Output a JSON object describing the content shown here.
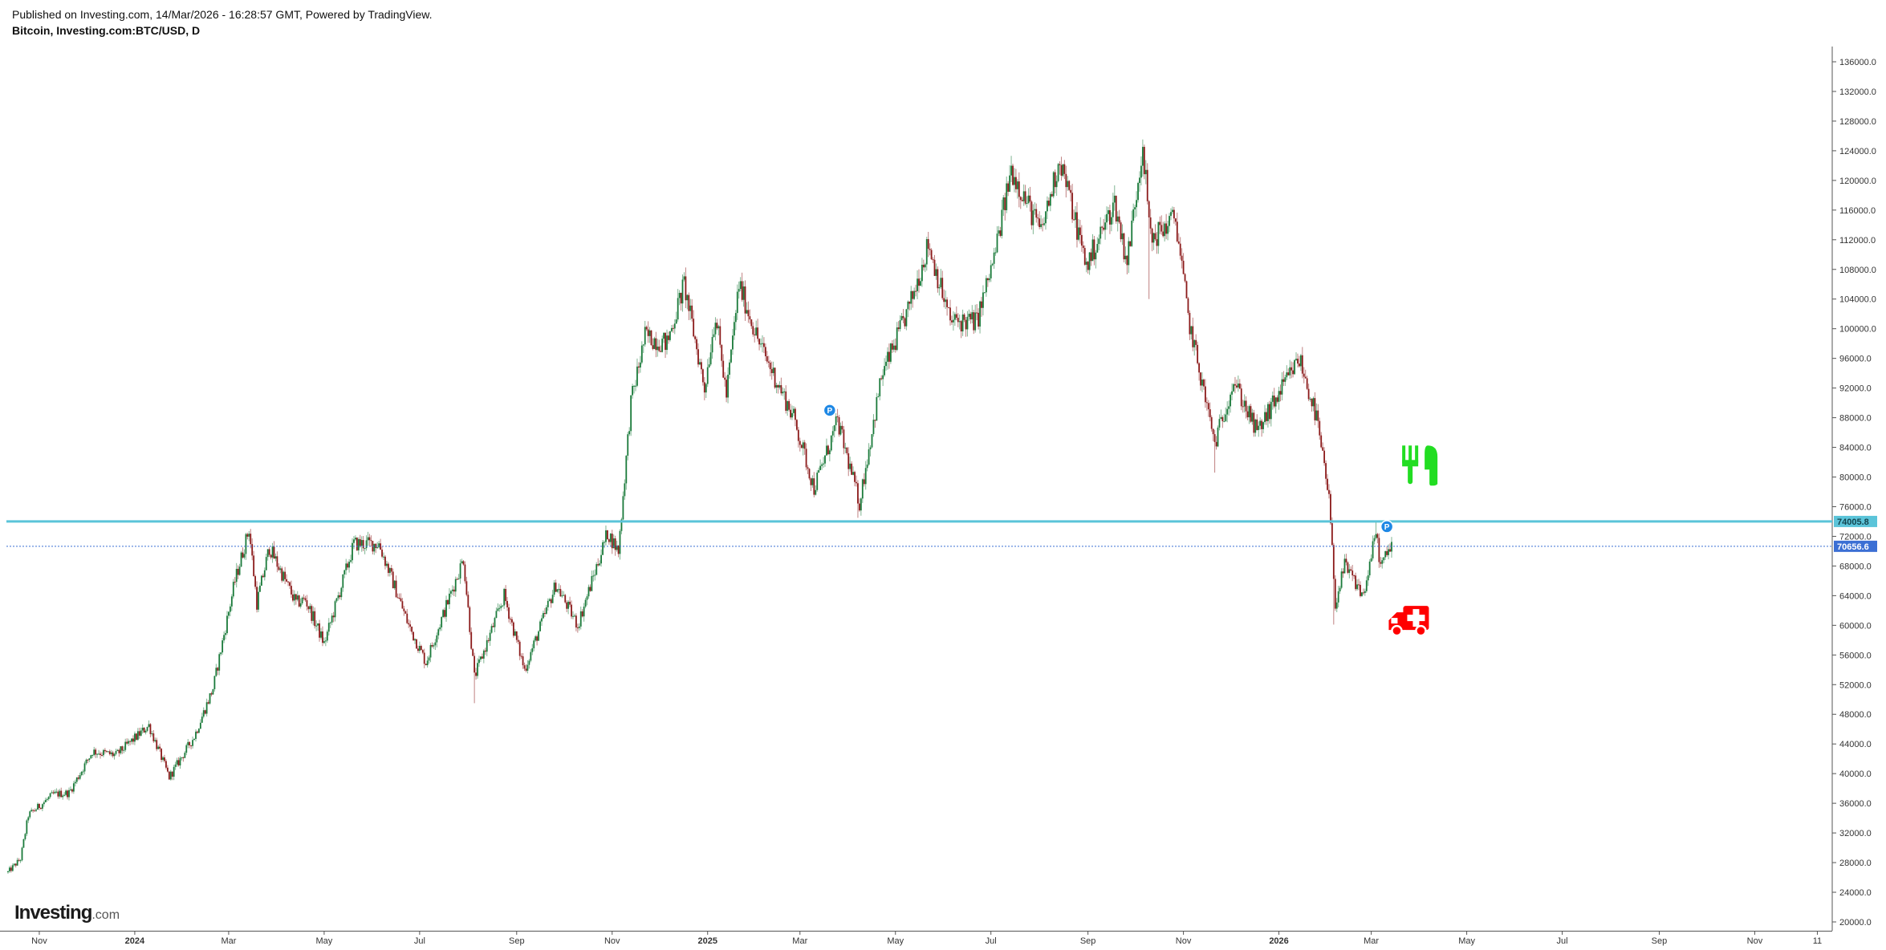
{
  "header": {
    "published": "Published on Investing.com, 14/Mar/2026 - 16:28:57 GMT, Powered by TradingView.",
    "symbol": "Bitcoin, Investing.com:BTC/USD, D"
  },
  "logo": {
    "main": "Investing",
    "suffix": ".com"
  },
  "colors": {
    "up": "#1a7a3a",
    "down": "#8b1a1a",
    "resistance": "#5bc4d9",
    "current": "#3b6fd4",
    "marker": "#1e88e5",
    "fork_icon": "#22dd22",
    "ambulance_icon": "#ff0000"
  },
  "chart_data": {
    "type": "candlestick",
    "title": "",
    "ylim": [
      20000,
      138000
    ],
    "y_ticks": [
      20000,
      24000,
      28000,
      32000,
      36000,
      40000,
      44000,
      48000,
      52000,
      56000,
      60000,
      64000,
      68000,
      72000,
      76000,
      80000,
      84000,
      88000,
      92000,
      96000,
      100000,
      104000,
      108000,
      112000,
      116000,
      120000,
      124000,
      128000,
      132000,
      136000
    ],
    "y_tick_labels": [
      "20000.0",
      "24000.0",
      "28000.0",
      "32000.0",
      "36000.0",
      "40000.0",
      "44000.0",
      "48000.0",
      "52000.0",
      "56000.0",
      "60000.0",
      "64000.0",
      "68000.0",
      "72000.0",
      "76000.0",
      "80000.0",
      "84000.0",
      "88000.0",
      "92000.0",
      "96000.0",
      "100000.0",
      "104000.0",
      "108000.0",
      "112000.0",
      "116000.0",
      "120000.0",
      "124000.0",
      "128000.0",
      "132000.0",
      "136000.0"
    ],
    "x_range": [
      "2023-10-11",
      "2026-12-20"
    ],
    "x_ticks": [
      {
        "date": "2023-11-01",
        "label": "Nov",
        "bold": false
      },
      {
        "date": "2024-01-01",
        "label": "2024",
        "bold": true
      },
      {
        "date": "2024-03-01",
        "label": "Mar",
        "bold": false
      },
      {
        "date": "2024-05-01",
        "label": "May",
        "bold": false
      },
      {
        "date": "2024-07-01",
        "label": "Jul",
        "bold": false
      },
      {
        "date": "2024-09-01",
        "label": "Sep",
        "bold": false
      },
      {
        "date": "2024-11-01",
        "label": "Nov",
        "bold": false
      },
      {
        "date": "2025-01-01",
        "label": "2025",
        "bold": true
      },
      {
        "date": "2025-03-01",
        "label": "Mar",
        "bold": false
      },
      {
        "date": "2025-05-01",
        "label": "May",
        "bold": false
      },
      {
        "date": "2025-07-01",
        "label": "Jul",
        "bold": false
      },
      {
        "date": "2025-09-01",
        "label": "Sep",
        "bold": false
      },
      {
        "date": "2025-11-01",
        "label": "Nov",
        "bold": false
      },
      {
        "date": "2026-01-01",
        "label": "2026",
        "bold": true
      },
      {
        "date": "2026-03-01",
        "label": "Mar",
        "bold": false
      },
      {
        "date": "2026-05-01",
        "label": "May",
        "bold": false
      },
      {
        "date": "2026-07-01",
        "label": "Jul",
        "bold": false
      },
      {
        "date": "2026-09-01",
        "label": "Sep",
        "bold": false
      },
      {
        "date": "2026-11-01",
        "label": "Nov",
        "bold": false
      },
      {
        "date": "2026-12-11",
        "label": "11",
        "bold": false
      }
    ],
    "close_path": [
      [
        "2023-10-12",
        26700
      ],
      [
        "2023-10-20",
        28500
      ],
      [
        "2023-10-25",
        34400
      ],
      [
        "2023-11-10",
        37200
      ],
      [
        "2023-11-20",
        37400
      ],
      [
        "2023-12-05",
        43000
      ],
      [
        "2023-12-20",
        42500
      ],
      [
        "2024-01-10",
        46500
      ],
      [
        "2024-01-23",
        39500
      ],
      [
        "2024-02-08",
        45000
      ],
      [
        "2024-02-20",
        51500
      ],
      [
        "2024-03-05",
        66000
      ],
      [
        "2024-03-14",
        73000
      ],
      [
        "2024-03-19",
        63000
      ],
      [
        "2024-03-27",
        70500
      ],
      [
        "2024-04-13",
        63000
      ],
      [
        "2024-04-19",
        63500
      ],
      [
        "2024-05-01",
        57500
      ],
      [
        "2024-05-20",
        71000
      ],
      [
        "2024-06-05",
        71000
      ],
      [
        "2024-06-24",
        60000
      ],
      [
        "2024-07-05",
        55000
      ],
      [
        "2024-07-29",
        69000
      ],
      [
        "2024-08-05",
        53000
      ],
      [
        "2024-08-24",
        64000
      ],
      [
        "2024-09-06",
        54000
      ],
      [
        "2024-09-26",
        65500
      ],
      [
        "2024-10-10",
        60000
      ],
      [
        "2024-10-29",
        72500
      ],
      [
        "2024-11-05",
        70000
      ],
      [
        "2024-11-13",
        90000
      ],
      [
        "2024-11-22",
        99000
      ],
      [
        "2024-12-06",
        98000
      ],
      [
        "2024-12-17",
        106000
      ],
      [
        "2024-12-30",
        92000
      ],
      [
        "2025-01-06",
        102000
      ],
      [
        "2025-01-13",
        91000
      ],
      [
        "2025-01-21",
        106000
      ],
      [
        "2025-02-03",
        98000
      ],
      [
        "2025-02-25",
        88000
      ],
      [
        "2025-03-10",
        78500
      ],
      [
        "2025-03-25",
        87500
      ],
      [
        "2025-04-08",
        76500
      ],
      [
        "2025-04-22",
        93500
      ],
      [
        "2025-05-10",
        103000
      ],
      [
        "2025-05-22",
        111500
      ],
      [
        "2025-06-05",
        101000
      ],
      [
        "2025-06-22",
        101000
      ],
      [
        "2025-07-03",
        109500
      ],
      [
        "2025-07-14",
        121500
      ],
      [
        "2025-08-02",
        113000
      ],
      [
        "2025-08-14",
        123000
      ],
      [
        "2025-08-31",
        108500
      ],
      [
        "2025-09-18",
        117000
      ],
      [
        "2025-09-26",
        109000
      ],
      [
        "2025-10-06",
        125000
      ],
      [
        "2025-10-11",
        112000
      ],
      [
        "2025-10-27",
        115000
      ],
      [
        "2025-11-04",
        101500
      ],
      [
        "2025-11-21",
        84500
      ],
      [
        "2025-12-03",
        93000
      ],
      [
        "2025-12-18",
        86000
      ],
      [
        "2026-01-14",
        96000
      ],
      [
        "2026-01-25",
        88000
      ],
      [
        "2026-02-02",
        77000
      ],
      [
        "2026-02-06",
        63000
      ],
      [
        "2026-02-12",
        68000
      ],
      [
        "2026-02-24",
        64000
      ],
      [
        "2026-03-04",
        72500
      ],
      [
        "2026-03-07",
        68000
      ],
      [
        "2026-03-14",
        70650
      ]
    ],
    "wick_spikes": [
      [
        "2024-08-05",
        49500
      ],
      [
        "2025-04-07",
        74500
      ],
      [
        "2025-10-10",
        104000
      ],
      [
        "2025-11-21",
        80600
      ],
      [
        "2026-02-05",
        60100
      ],
      [
        "2026-03-04",
        74000
      ]
    ],
    "horizontal_lines": [
      {
        "value": 74005.8,
        "label": "74005.8",
        "style": "resistance"
      },
      {
        "value": 70656.6,
        "label": "70656.6",
        "style": "current"
      }
    ],
    "annotations": [
      {
        "type": "marker",
        "date": "2025-03-20",
        "value": 89000,
        "label": "P"
      },
      {
        "type": "marker",
        "date": "2026-03-11",
        "value": 73300,
        "label": "P"
      },
      {
        "type": "icon",
        "name": "fork-knife-icon",
        "date": "2026-03-31",
        "value": 81000
      },
      {
        "type": "icon",
        "name": "ambulance-icon",
        "date": "2026-03-25",
        "value": 61000
      }
    ]
  }
}
